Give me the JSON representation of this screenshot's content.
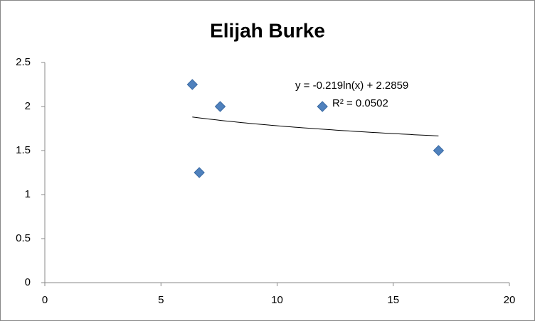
{
  "chart_data": {
    "type": "scatter",
    "title": "Elijah Burke",
    "x": [
      6.35,
      6.65,
      7.55,
      11.95,
      16.95
    ],
    "values": [
      2.25,
      1.25,
      2.0,
      2.0,
      1.5
    ],
    "color": "#4f81bd",
    "xlim": [
      0,
      20
    ],
    "xticks": [
      0,
      5,
      10,
      15,
      20
    ],
    "ylim": [
      0,
      2.5
    ],
    "yticks": [
      0,
      0.5,
      1,
      1.5,
      2,
      2.5
    ],
    "grid": false,
    "trendline": {
      "kind": "logarithmic",
      "a": -0.219,
      "b": 2.2859,
      "r2": 0.0502,
      "label": "y = -0.219ln(x) + 2.2859",
      "r2_label": "R² = 0.0502"
    }
  }
}
